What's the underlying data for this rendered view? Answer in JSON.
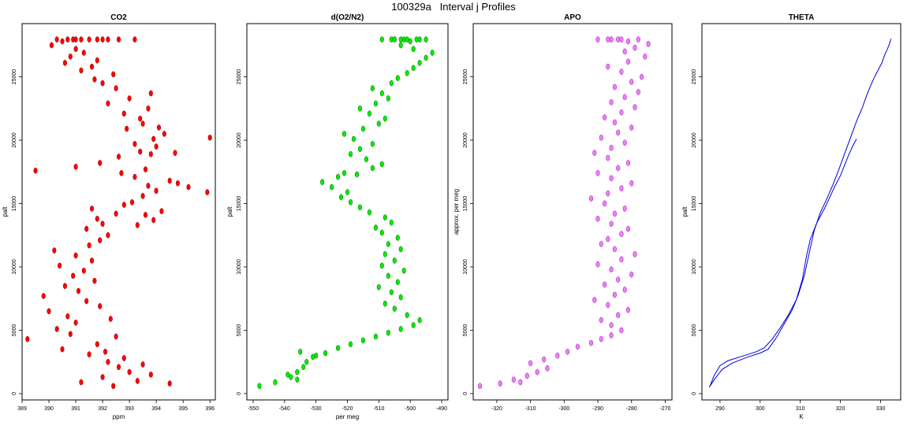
{
  "figure": {
    "title": "100329a   Interval j Profiles"
  },
  "chart_data": [
    {
      "type": "scatter",
      "title": "CO2",
      "xlabel": "ppm",
      "ylabel": "palt",
      "xlim": [
        389,
        396.2
      ],
      "ylim": [
        -500,
        29200
      ],
      "xticks": [
        389,
        390,
        391,
        392,
        393,
        394,
        395,
        396
      ],
      "yticks": [
        0,
        5000,
        10000,
        15000,
        20000,
        25000
      ],
      "fill_color": "#ff0000",
      "edge_color": "#8b0000",
      "series": [
        {
          "x": [
            392.4,
            391.2,
            392.0,
            393.0,
            392.6,
            393.8,
            392.2,
            394.5,
            391.5,
            390.5,
            392.8,
            391.8,
            389.2,
            390.8,
            393.3,
            392.1,
            390.3,
            391.0,
            392.5,
            393.5,
            390.7,
            390.0,
            391.9,
            392.3,
            391.4,
            389.8,
            391.1,
            390.6,
            391.7,
            390.9,
            391.3,
            390.4,
            391.6,
            391.0,
            390.2,
            391.5,
            391.9,
            392.2,
            391.4,
            392.0,
            391.8,
            392.5,
            391.6,
            392.8,
            393.1,
            393.6,
            393.9,
            394.2,
            393.3,
            393.5,
            394.0,
            393.7,
            394.5,
            395.2,
            394.8,
            395.9,
            393.2,
            392.7,
            393.6,
            391.0,
            391.9,
            389.5,
            392.6,
            393.4,
            394.0,
            394.7,
            393.8,
            393.2,
            393.9,
            394.3,
            392.9,
            393.5,
            394.1,
            396.0,
            393.4,
            392.8,
            393.7,
            392.2,
            393.0,
            393.8,
            392.5,
            392.0,
            391.7,
            392.4,
            391.2,
            391.6,
            390.6,
            391.8,
            390.8,
            391.3,
            391.0,
            390.1,
            390.5,
            390.3,
            391.2,
            390.9,
            391.5,
            390.7,
            391.0,
            392.2,
            393.2,
            391.8,
            392.6,
            392.0
          ],
          "y": [
            600,
            900,
            1300,
            1700,
            2100,
            1500,
            2500,
            800,
            3100,
            3500,
            2800,
            3900,
            4300,
            4700,
            1000,
            3300,
            5100,
            5600,
            4500,
            2300,
            6100,
            6500,
            6900,
            5900,
            7300,
            7700,
            8100,
            8500,
            8900,
            9300,
            9700,
            10100,
            10500,
            10900,
            11300,
            11700,
            12100,
            12500,
            13000,
            13400,
            13800,
            14200,
            14600,
            14900,
            15100,
            14100,
            13700,
            14400,
            13300,
            15600,
            16000,
            16400,
            16800,
            16300,
            16600,
            15900,
            17100,
            17400,
            17700,
            17900,
            18200,
            17600,
            18700,
            19100,
            19500,
            19000,
            18900,
            19700,
            20100,
            20500,
            20900,
            21300,
            21000,
            20200,
            21700,
            22100,
            22500,
            22900,
            23300,
            23700,
            24100,
            24500,
            24800,
            25200,
            25500,
            25800,
            26100,
            26300,
            26600,
            26900,
            27200,
            27500,
            27800,
            27950,
            27950,
            27950,
            27950,
            27950,
            27950,
            27950,
            27950,
            27950,
            27950,
            27950
          ]
        }
      ]
    },
    {
      "type": "scatter",
      "title": "d(O2/N2)",
      "xlabel": "per meg",
      "ylabel": "palt",
      "xlim": [
        -552,
        -488
      ],
      "ylim": [
        -500,
        29200
      ],
      "xticks": [
        -550,
        -540,
        -530,
        -520,
        -510,
        -500,
        -490
      ],
      "yticks": [
        0,
        5000,
        10000,
        15000,
        20000,
        25000
      ],
      "fill_color": "#00ee00",
      "edge_color": "#006400",
      "series": [
        {
          "x": [
            -548,
            -543,
            -538,
            -536,
            -534,
            -533,
            -531,
            -536,
            -539,
            -535,
            -530,
            -527,
            -523,
            -519,
            -515,
            -511,
            -507,
            -503,
            -499,
            -497,
            -501,
            -505,
            -508,
            -503,
            -506,
            -510,
            -504,
            -507,
            -502,
            -509,
            -505,
            -508,
            -503,
            -507,
            -504,
            -509,
            -511,
            -506,
            -508,
            -513,
            -516,
            -519,
            -522,
            -520,
            -525,
            -528,
            -523,
            -521,
            -517,
            -512,
            -509,
            -514,
            -519,
            -516,
            -512,
            -518,
            -521,
            -515,
            -510,
            -508,
            -513,
            -516,
            -511,
            -507,
            -509,
            -512,
            -506,
            -504,
            -501,
            -499,
            -497,
            -495,
            -493,
            -499,
            -503,
            -500,
            -498,
            -502,
            -506,
            -509,
            -505,
            -501,
            -495,
            -497,
            -503,
            -505
          ],
          "y": [
            600,
            900,
            1300,
            1700,
            2100,
            2500,
            2900,
            1100,
            1500,
            3300,
            3000,
            3200,
            3600,
            3900,
            4200,
            4500,
            4800,
            5100,
            5400,
            5800,
            6200,
            6700,
            7100,
            7600,
            8000,
            8400,
            8800,
            9300,
            9700,
            10100,
            10500,
            11000,
            11400,
            11800,
            12300,
            12700,
            13100,
            13500,
            13900,
            14300,
            14700,
            15100,
            15500,
            15900,
            16300,
            16700,
            17100,
            17400,
            17300,
            17800,
            18100,
            18500,
            18900,
            19300,
            19700,
            20100,
            20500,
            20900,
            21300,
            21700,
            22100,
            22500,
            22900,
            23300,
            23700,
            24100,
            24500,
            24900,
            25300,
            25700,
            26100,
            26500,
            26900,
            27200,
            27500,
            27800,
            27950,
            27950,
            27950,
            27950,
            27950,
            27950,
            27950,
            27950,
            27950,
            27950
          ]
        }
      ]
    },
    {
      "type": "scatter",
      "title": "APO",
      "xlabel": "",
      "ylabel": "approx. per meg",
      "xlim": [
        -327,
        -268
      ],
      "ylim": [
        -500,
        29200
      ],
      "xticks": [
        -320,
        -310,
        -300,
        -290,
        -280,
        -270
      ],
      "yticks": [
        0,
        5000,
        10000,
        15000,
        20000,
        25000
      ],
      "fill_color": "#ee82ee",
      "edge_color": "#9400d3",
      "series": [
        {
          "x": [
            -325,
            -319,
            -315,
            -311,
            -308,
            -305,
            -313,
            -310,
            -306,
            -302,
            -299,
            -296,
            -292,
            -289,
            -286,
            -283,
            -286,
            -289,
            -284,
            -281,
            -287,
            -291,
            -285,
            -282,
            -288,
            -284,
            -280,
            -286,
            -290,
            -283,
            -279,
            -285,
            -289,
            -287,
            -283,
            -281,
            -286,
            -290,
            -285,
            -282,
            -288,
            -292,
            -287,
            -283,
            -280,
            -286,
            -290,
            -284,
            -281,
            -287,
            -291,
            -286,
            -282,
            -289,
            -284,
            -280,
            -285,
            -288,
            -283,
            -279,
            -286,
            -282,
            -278,
            -285,
            -280,
            -277,
            -283,
            -287,
            -281,
            -276,
            -282,
            -279,
            -275,
            -281,
            -284,
            -286,
            -290,
            -278,
            -283,
            -287
          ],
          "y": [
            600,
            800,
            1100,
            1400,
            1700,
            2000,
            900,
            2400,
            2700,
            3000,
            3300,
            3700,
            4000,
            4300,
            4600,
            5000,
            5400,
            5800,
            6200,
            6600,
            7000,
            7400,
            7800,
            8200,
            8600,
            9000,
            9400,
            9800,
            10200,
            10600,
            11000,
            11400,
            11800,
            12200,
            12600,
            13000,
            13400,
            13800,
            14200,
            14600,
            15000,
            15400,
            15800,
            16200,
            16600,
            17000,
            17400,
            17800,
            18200,
            18600,
            19000,
            19400,
            19800,
            20200,
            20600,
            21000,
            21400,
            21800,
            22200,
            22600,
            23000,
            23400,
            23800,
            24200,
            24600,
            25000,
            25400,
            25800,
            26200,
            26600,
            27000,
            27300,
            27600,
            27800,
            27950,
            27950,
            27950,
            27950,
            27950,
            27950
          ]
        }
      ]
    },
    {
      "type": "line",
      "title": "THETA",
      "xlabel": "K",
      "ylabel": "palt",
      "xlim": [
        285.5,
        335
      ],
      "ylim": [
        -500,
        29200
      ],
      "xticks": [
        290,
        300,
        310,
        320,
        330
      ],
      "yticks": [
        0,
        5000,
        10000,
        15000,
        20000,
        25000
      ],
      "line_color": "#0000dd",
      "series": [
        {
          "x": [
            287.5,
            288.5,
            290,
            292,
            296,
            299,
            301,
            303,
            305,
            307,
            309,
            310.5,
            311.5,
            312.5,
            314,
            316,
            317.5,
            318.5,
            320,
            321,
            322,
            323,
            324
          ],
          "y": [
            600,
            1400,
            2200,
            2600,
            3000,
            3300,
            3600,
            4300,
            5200,
            6200,
            7400,
            9000,
            10800,
            12200,
            13400,
            14600,
            15600,
            16300,
            17200,
            18000,
            18800,
            19500,
            20100
          ]
        },
        {
          "x": [
            287.3,
            288.8,
            290.5,
            293,
            297,
            300,
            302,
            304,
            306,
            308,
            309.5,
            311,
            312.3,
            313.5,
            315,
            316.5,
            318,
            319.5,
            321,
            322.5,
            324,
            325.5,
            326.5,
            327.5,
            328.5,
            329.5,
            330.3,
            331,
            331.7,
            332.2,
            332.6
          ],
          "y": [
            500,
            1200,
            1900,
            2400,
            2900,
            3200,
            3500,
            4400,
            5500,
            6600,
            7800,
            9300,
            11200,
            12900,
            14300,
            15300,
            16400,
            17600,
            18900,
            20200,
            21500,
            22600,
            23500,
            24300,
            25000,
            25600,
            26100,
            26700,
            27200,
            27600,
            28000
          ]
        }
      ]
    }
  ]
}
